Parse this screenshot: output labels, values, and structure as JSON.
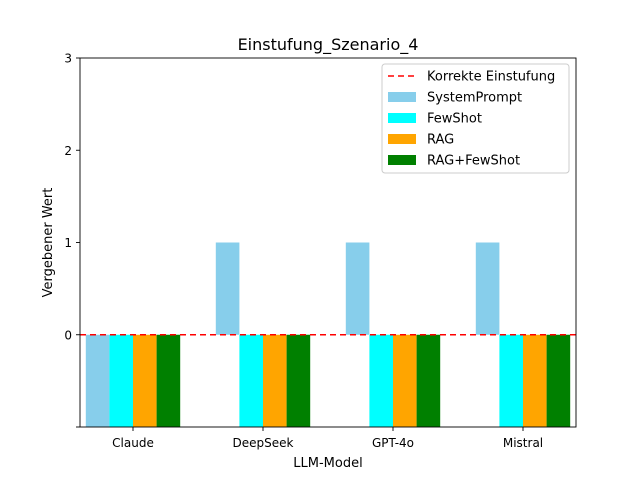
{
  "chart_data": {
    "type": "bar",
    "title": "Einstufung_Szenario_4",
    "xlabel": "LLM-Model",
    "ylabel": "Vergebener Wert",
    "categories": [
      "Claude",
      "DeepSeek",
      "GPT-4o",
      "Mistral"
    ],
    "ylim": [
      -1,
      3
    ],
    "yticks": [
      0,
      1,
      2,
      3
    ],
    "ytick_labels": [
      "0",
      "1",
      "2",
      "3"
    ],
    "grid": false,
    "legend_position": "top-right",
    "series": [
      {
        "name": "SystemPrompt",
        "color": "#87ceeb",
        "values": [
          -1,
          1,
          1,
          1
        ]
      },
      {
        "name": "FewShot",
        "color": "#00ffff",
        "values": [
          -1,
          -1,
          -1,
          -1
        ]
      },
      {
        "name": "RAG",
        "color": "#ffa500",
        "values": [
          -1,
          -1,
          -1,
          -1
        ]
      },
      {
        "name": "RAG+FewShot",
        "color": "#008000",
        "values": [
          -1,
          -1,
          -1,
          -1
        ]
      }
    ],
    "reference_line": {
      "name": "Korrekte Einstufung",
      "value": 0,
      "color": "#ff0000",
      "style": "dashed"
    }
  }
}
